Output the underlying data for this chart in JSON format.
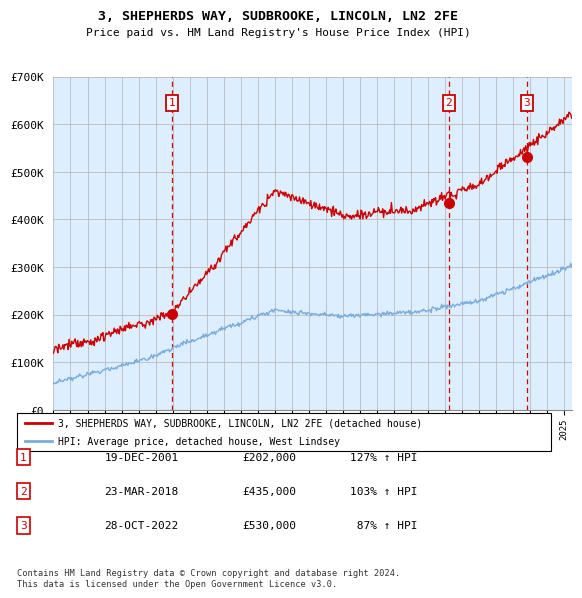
{
  "title": "3, SHEPHERDS WAY, SUDBROOKE, LINCOLN, LN2 2FE",
  "subtitle": "Price paid vs. HM Land Registry's House Price Index (HPI)",
  "ylabel_ticks": [
    "£0",
    "£100K",
    "£200K",
    "£300K",
    "£400K",
    "£500K",
    "£600K",
    "£700K"
  ],
  "ylim": [
    0,
    700000
  ],
  "xlim_start": 1995.0,
  "xlim_end": 2025.5,
  "sale_dates": [
    2001.97,
    2018.23,
    2022.83
  ],
  "sale_prices": [
    202000,
    435000,
    530000
  ],
  "sale_labels": [
    "1",
    "2",
    "3"
  ],
  "hpi_color": "#7aaddd",
  "price_color": "#cc0000",
  "dashed_color": "#cc0000",
  "chart_bg": "#ddeeff",
  "legend_label_red": "3, SHEPHERDS WAY, SUDBROOKE, LINCOLN, LN2 2FE (detached house)",
  "legend_label_blue": "HPI: Average price, detached house, West Lindsey",
  "table_rows": [
    [
      "1",
      "19-DEC-2001",
      "£202,000",
      "127% ↑ HPI"
    ],
    [
      "2",
      "23-MAR-2018",
      "£435,000",
      "103% ↑ HPI"
    ],
    [
      "3",
      "28-OCT-2022",
      "£530,000",
      " 87% ↑ HPI"
    ]
  ],
  "footnote": "Contains HM Land Registry data © Crown copyright and database right 2024.\nThis data is licensed under the Open Government Licence v3.0.",
  "background_color": "#ffffff",
  "grid_color": "#bbbbbb"
}
